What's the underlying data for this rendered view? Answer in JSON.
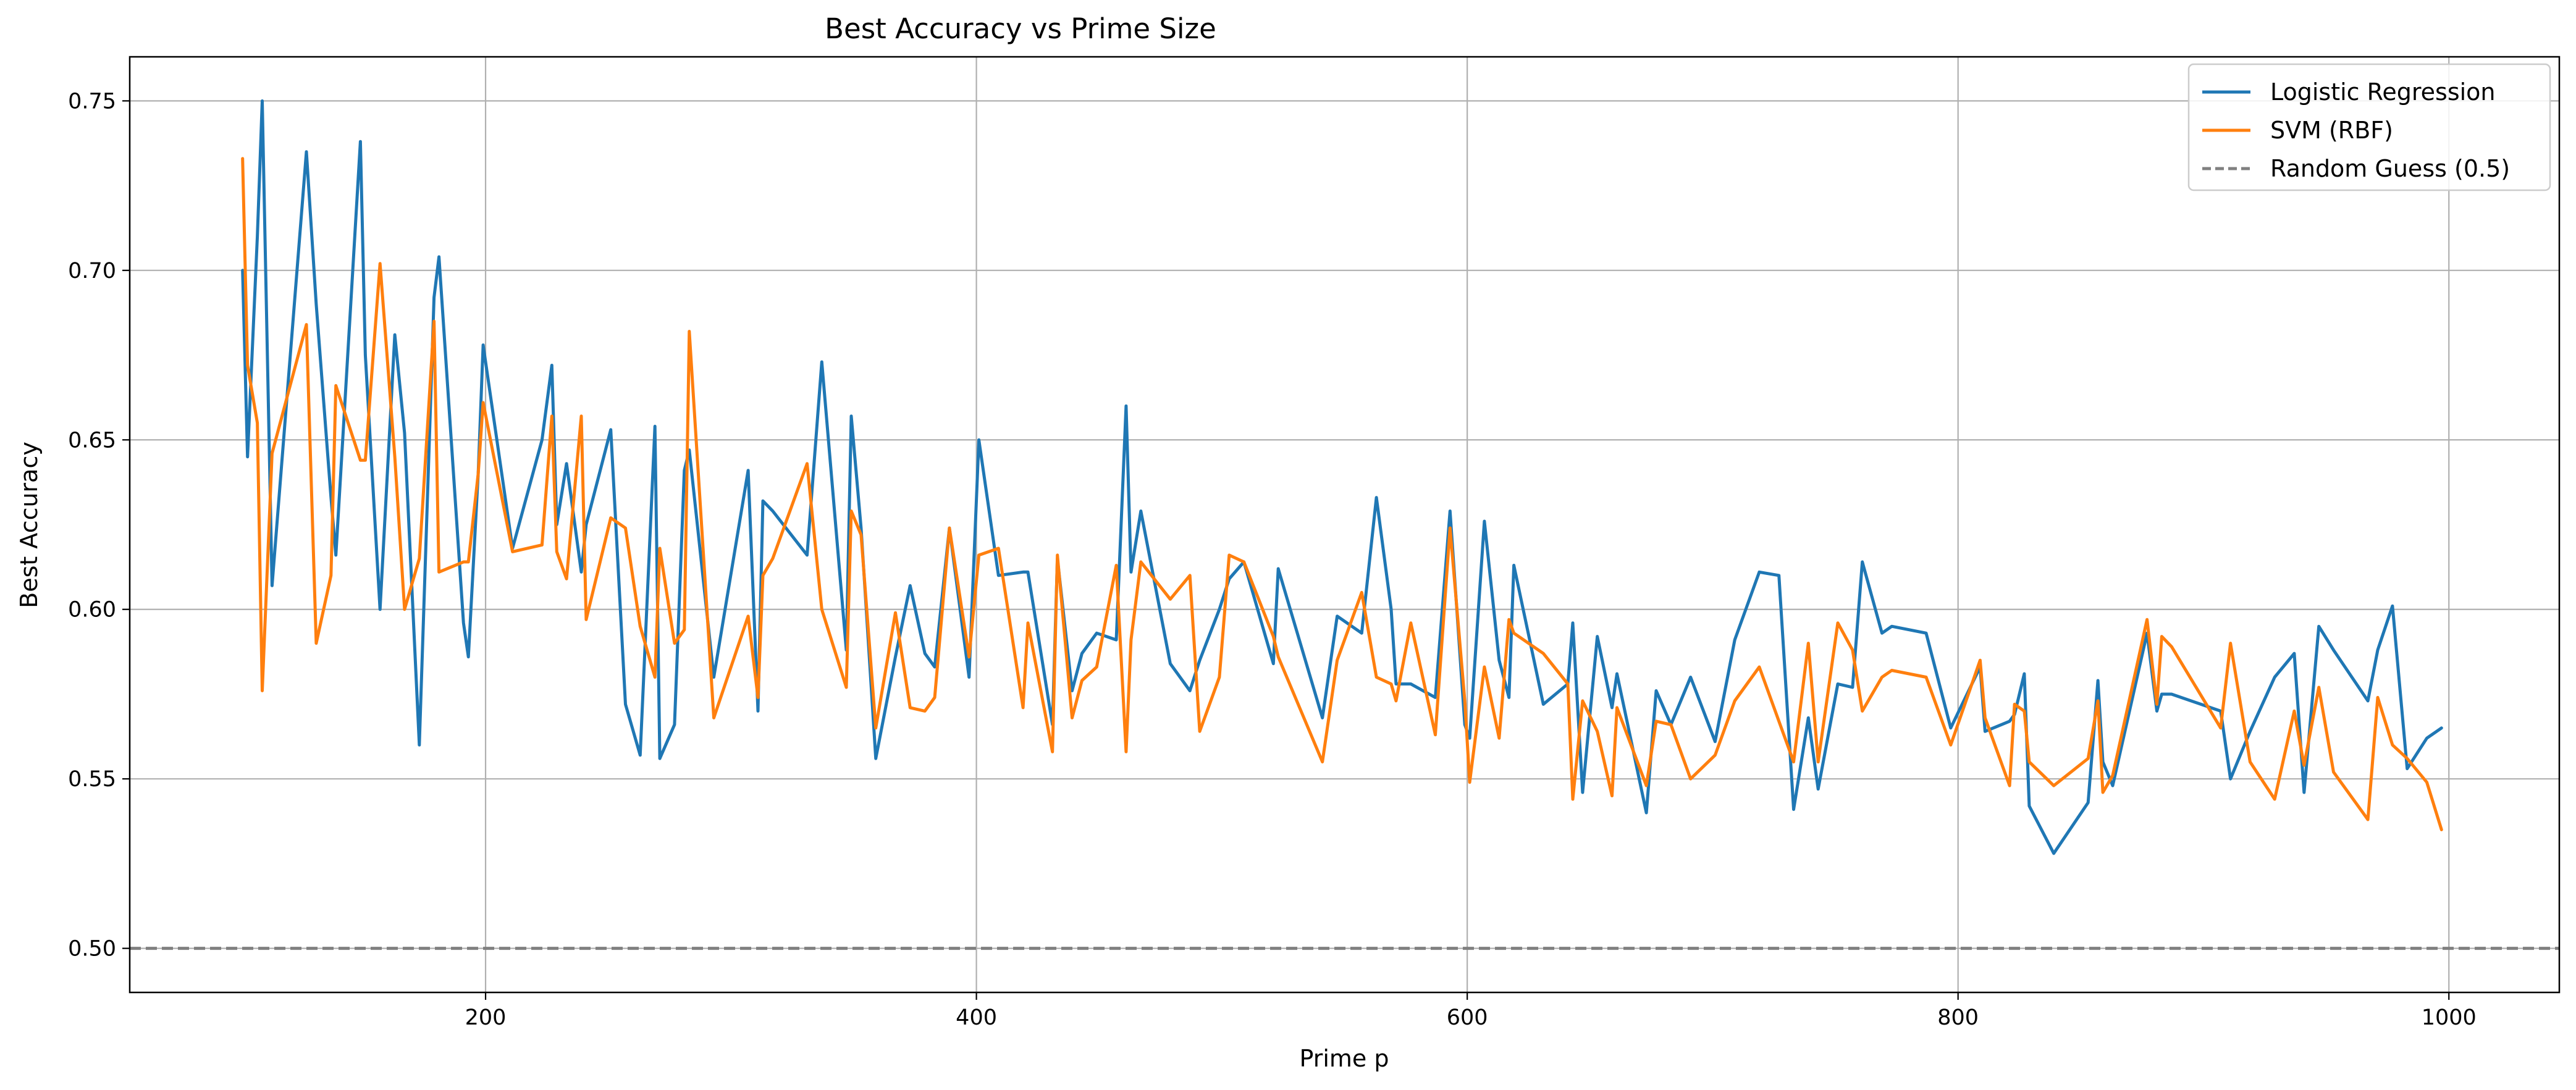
{
  "chart_data": {
    "type": "line",
    "title": "Best Accuracy vs Prime Size",
    "xlabel": "Prime p",
    "ylabel": "Best Accuracy",
    "xlim": [
      55,
      1045
    ],
    "ylim": [
      0.487,
      0.763
    ],
    "xticks": [
      200,
      400,
      600,
      800,
      1000
    ],
    "xtick_labels": [
      "200",
      "400",
      "600",
      "800",
      "1000"
    ],
    "yticks": [
      0.5,
      0.55,
      0.6,
      0.65,
      0.7,
      0.75
    ],
    "ytick_labels": [
      "0.50",
      "0.55",
      "0.60",
      "0.65",
      "0.70",
      "0.75"
    ],
    "grid": true,
    "legend_position": "top-right",
    "colors": {
      "logistic": "#1f77b4",
      "svm": "#ff7f0e",
      "random": "#808080"
    },
    "reference_line": {
      "name": "Random Guess (0.5)",
      "y": 0.5,
      "style": "dashed"
    },
    "series": [
      {
        "name": "Logistic Regression",
        "x": [
          101,
          103,
          107,
          109,
          113,
          127,
          131,
          137,
          139,
          149,
          151,
          157,
          163,
          167,
          173,
          179,
          181,
          191,
          193,
          197,
          199,
          211,
          223,
          227,
          229,
          233,
          239,
          241,
          251,
          257,
          263,
          269,
          271,
          277,
          281,
          283,
          293,
          307,
          311,
          313,
          317,
          331,
          337,
          347,
          349,
          353,
          359,
          367,
          373,
          379,
          383,
          389,
          397,
          401,
          409,
          419,
          421,
          431,
          433,
          439,
          443,
          449,
          457,
          461,
          463,
          467,
          479,
          487,
          491,
          499,
          503,
          509,
          521,
          523,
          541,
          547,
          557,
          563,
          569,
          571,
          577,
          587,
          593,
          599,
          601,
          607,
          613,
          617,
          619,
          631,
          641,
          643,
          647,
          653,
          659,
          661,
          673,
          677,
          683,
          691,
          701,
          709,
          719,
          727,
          733,
          739,
          743,
          751,
          757,
          761,
          769,
          773,
          787,
          797,
          809,
          811,
          821,
          823,
          827,
          829,
          839,
          853,
          857,
          859,
          863,
          877,
          881,
          883,
          887,
          907,
          911,
          919,
          929,
          937,
          941,
          947,
          953,
          967,
          971,
          977,
          983,
          991,
          997
        ],
        "values": [
          0.7,
          0.645,
          0.71,
          0.75,
          0.607,
          0.735,
          0.69,
          0.633,
          0.616,
          0.738,
          0.675,
          0.6,
          0.681,
          0.652,
          0.56,
          0.692,
          0.704,
          0.596,
          0.586,
          0.64,
          0.678,
          0.618,
          0.65,
          0.672,
          0.625,
          0.643,
          0.611,
          0.625,
          0.653,
          0.572,
          0.557,
          0.654,
          0.556,
          0.566,
          0.641,
          0.647,
          0.58,
          0.641,
          0.57,
          0.632,
          0.629,
          0.616,
          0.673,
          0.588,
          0.657,
          0.624,
          0.556,
          0.586,
          0.607,
          0.587,
          0.583,
          0.624,
          0.58,
          0.65,
          0.61,
          0.611,
          0.611,
          0.566,
          0.615,
          0.576,
          0.587,
          0.593,
          0.591,
          0.66,
          0.611,
          0.629,
          0.584,
          0.576,
          0.585,
          0.6,
          0.609,
          0.614,
          0.584,
          0.612,
          0.568,
          0.598,
          0.593,
          0.633,
          0.6,
          0.578,
          0.578,
          0.574,
          0.629,
          0.566,
          0.562,
          0.626,
          0.585,
          0.574,
          0.613,
          0.572,
          0.578,
          0.596,
          0.546,
          0.592,
          0.571,
          0.581,
          0.54,
          0.576,
          0.566,
          0.58,
          0.561,
          0.591,
          0.611,
          0.61,
          0.541,
          0.568,
          0.547,
          0.578,
          0.577,
          0.614,
          0.593,
          0.595,
          0.593,
          0.565,
          0.583,
          0.564,
          0.567,
          0.569,
          0.581,
          0.542,
          0.528,
          0.543,
          0.579,
          0.555,
          0.548,
          0.593,
          0.57,
          0.575,
          0.575,
          0.57,
          0.55,
          0.564,
          0.58,
          0.587,
          0.546,
          0.595,
          0.588,
          0.573,
          0.588,
          0.601,
          0.553,
          0.562,
          0.565
        ]
      },
      {
        "name": "SVM (RBF)",
        "x": [
          101,
          103,
          107,
          109,
          113,
          127,
          131,
          137,
          139,
          149,
          151,
          157,
          163,
          167,
          173,
          179,
          181,
          191,
          193,
          197,
          199,
          211,
          223,
          227,
          229,
          233,
          239,
          241,
          251,
          257,
          263,
          269,
          271,
          277,
          281,
          283,
          293,
          307,
          311,
          313,
          317,
          331,
          337,
          347,
          349,
          353,
          359,
          367,
          373,
          379,
          383,
          389,
          397,
          401,
          409,
          419,
          421,
          431,
          433,
          439,
          443,
          449,
          457,
          461,
          463,
          467,
          479,
          487,
          491,
          499,
          503,
          509,
          521,
          523,
          541,
          547,
          557,
          563,
          569,
          571,
          577,
          587,
          593,
          599,
          601,
          607,
          613,
          617,
          619,
          631,
          641,
          643,
          647,
          653,
          659,
          661,
          673,
          677,
          683,
          691,
          701,
          709,
          719,
          727,
          733,
          739,
          743,
          751,
          757,
          761,
          769,
          773,
          787,
          797,
          809,
          811,
          821,
          823,
          827,
          829,
          839,
          853,
          857,
          859,
          863,
          877,
          881,
          883,
          887,
          907,
          911,
          919,
          929,
          937,
          941,
          947,
          953,
          967,
          971,
          977,
          983,
          991,
          997
        ],
        "values": [
          0.733,
          0.672,
          0.655,
          0.576,
          0.646,
          0.684,
          0.59,
          0.61,
          0.666,
          0.644,
          0.644,
          0.702,
          0.645,
          0.6,
          0.615,
          0.685,
          0.611,
          0.614,
          0.614,
          0.64,
          0.661,
          0.617,
          0.619,
          0.657,
          0.617,
          0.609,
          0.657,
          0.597,
          0.627,
          0.624,
          0.595,
          0.58,
          0.618,
          0.59,
          0.594,
          0.682,
          0.568,
          0.598,
          0.574,
          0.61,
          0.615,
          0.643,
          0.6,
          0.577,
          0.629,
          0.622,
          0.565,
          0.599,
          0.571,
          0.57,
          0.574,
          0.624,
          0.586,
          0.616,
          0.618,
          0.571,
          0.596,
          0.558,
          0.616,
          0.568,
          0.579,
          0.583,
          0.613,
          0.558,
          0.591,
          0.614,
          0.603,
          0.61,
          0.564,
          0.58,
          0.616,
          0.614,
          0.592,
          0.586,
          0.555,
          0.585,
          0.605,
          0.58,
          0.578,
          0.573,
          0.596,
          0.563,
          0.624,
          0.573,
          0.549,
          0.583,
          0.562,
          0.597,
          0.593,
          0.587,
          0.578,
          0.544,
          0.573,
          0.564,
          0.545,
          0.571,
          0.548,
          0.567,
          0.566,
          0.55,
          0.557,
          0.573,
          0.583,
          0.567,
          0.555,
          0.59,
          0.555,
          0.596,
          0.588,
          0.57,
          0.58,
          0.582,
          0.58,
          0.56,
          0.585,
          0.568,
          0.548,
          0.572,
          0.57,
          0.555,
          0.548,
          0.556,
          0.573,
          0.546,
          0.551,
          0.597,
          0.572,
          0.592,
          0.589,
          0.565,
          0.59,
          0.555,
          0.544,
          0.57,
          0.554,
          0.577,
          0.552,
          0.538,
          0.574,
          0.56,
          0.556,
          0.549,
          0.535
        ]
      }
    ]
  }
}
